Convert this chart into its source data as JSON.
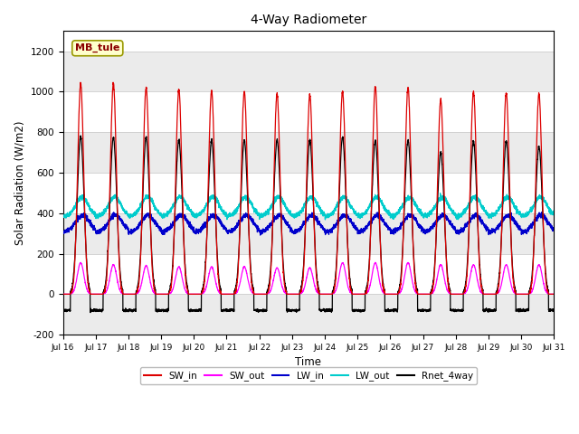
{
  "title": "4-Way Radiometer",
  "xlabel": "Time",
  "ylabel": "Solar Radiation (W/m2)",
  "ylim": [
    -200,
    1300
  ],
  "station_label": "MB_tule",
  "yticks": [
    -200,
    0,
    200,
    400,
    600,
    800,
    1000,
    1200
  ],
  "xtick_labels": [
    "Jul 16",
    "Jul 17",
    "Jul 18",
    "Jul 19",
    "Jul 20",
    "Jul 21",
    "Jul 22",
    "Jul 23",
    "Jul 24",
    "Jul 25",
    "Jul 26",
    "Jul 27",
    "Jul 28",
    "Jul 29",
    "Jul 30",
    "Jul 31"
  ],
  "colors": {
    "SW_in": "#dd0000",
    "SW_out": "#ff00ff",
    "LW_in": "#0000cc",
    "LW_out": "#00cccc",
    "Rnet_4way": "#000000"
  },
  "fig_bg_color": "#ffffff",
  "plot_bg_color": "#ffffff",
  "n_days": 15,
  "SW_in_peak": [
    1040,
    1040,
    1020,
    1010,
    1005,
    1000,
    990,
    985,
    1000,
    1025,
    1020,
    960,
    1000,
    995,
    990
  ],
  "SW_out_peak": [
    155,
    145,
    140,
    135,
    135,
    135,
    130,
    130,
    155,
    155,
    155,
    145,
    145,
    145,
    145
  ],
  "LW_in_base": 305,
  "LW_in_peak": 390,
  "LW_out_base": 385,
  "LW_out_peak": 480,
  "Rnet_peak": [
    780,
    775,
    775,
    760,
    760,
    760,
    760,
    760,
    775,
    760,
    760,
    700,
    755,
    755,
    730
  ],
  "Rnet_night": -80,
  "legend_entries": [
    "SW_in",
    "SW_out",
    "LW_in",
    "LW_out",
    "Rnet_4way"
  ]
}
